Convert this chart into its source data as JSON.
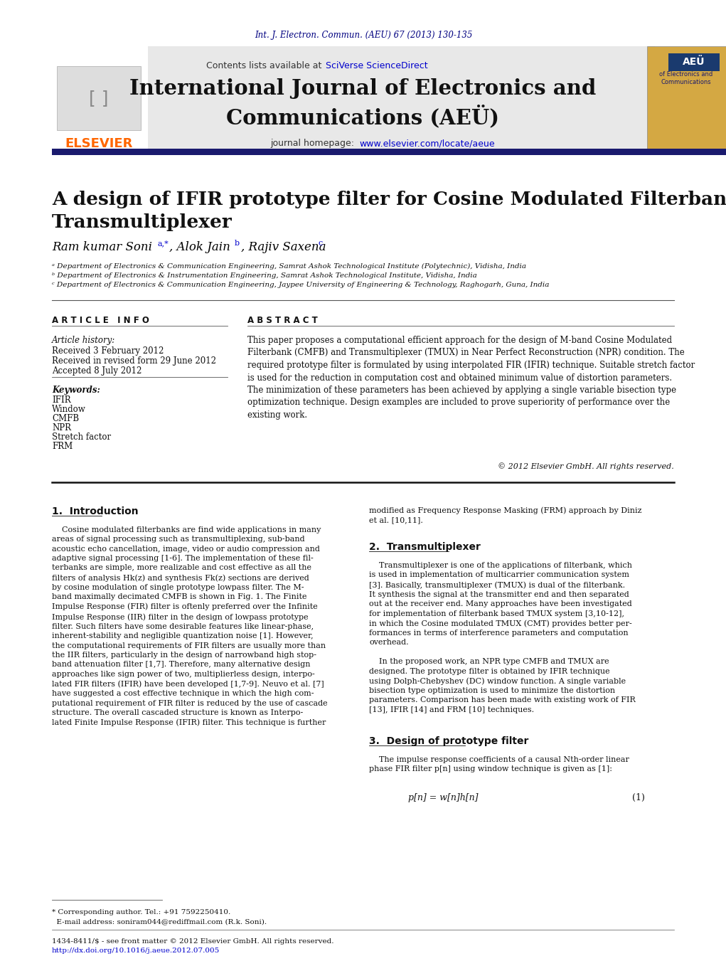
{
  "page_bg": "#ffffff",
  "header_journal_ref": "Int. J. Electron. Commun. (AEU) 67 (2013) 130-135",
  "header_journal_ref_color": "#000080",
  "journal_header_bg": "#e8e8e8",
  "journal_title": "International Journal of Electronics and\nCommunications (AEÜ)",
  "journal_homepage_link_color": "#0000cc",
  "elsevier_text": "ELSEVIER",
  "elsevier_color": "#ff6600",
  "divider_color": "#1a1a6e",
  "article_title": "A design of IFIR prototype filter for Cosine Modulated Filterbank and\nTransmultiplexer",
  "authors": "Ram kumar Soni",
  "authors_superscript": "a,*",
  "authors2": ", Alok Jain",
  "authors2_superscript": "b",
  "authors3": ", Rajiv Saxena",
  "authors3_superscript": "c",
  "affil_a": "ᵃ Department of Electronics & Communication Engineering, Samrat Ashok Technological Institute (Polytechnic), Vidisha, India",
  "affil_b": "ᵇ Department of Electronics & Instrumentation Engineering, Samrat Ashok Technological Institute, Vidisha, India",
  "affil_c": "ᶜ Department of Electronics & Communication Engineering, Jaypee University of Engineering & Technology, Raghogarh, Guna, India",
  "article_info_header": "A R T I C L E   I N F O",
  "abstract_header": "A B S T R A C T",
  "article_history_label": "Article history:",
  "received": "Received 3 February 2012",
  "received_revised": "Received in revised form 29 June 2012",
  "accepted": "Accepted 8 July 2012",
  "keywords_label": "Keywords:",
  "keywords": [
    "IFIR",
    "Window",
    "CMFB",
    "NPR",
    "Stretch factor",
    "FRM"
  ],
  "abstract_text": "This paper proposes a computational efficient approach for the design of M-band Cosine Modulated\nFilterbank (CMFB) and Transmultiplexer (TMUX) in Near Perfect Reconstruction (NPR) condition. The\nrequired prototype filter is formulated by using interpolated FIR (IFIR) technique. Suitable stretch factor\nis used for the reduction in computation cost and obtained minimum value of distortion parameters.\nThe minimization of these parameters has been achieved by applying a single variable bisection type\noptimization technique. Design examples are included to prove superiority of performance over the\nexisting work.",
  "copyright": "© 2012 Elsevier GmbH. All rights reserved.",
  "section1_title": "1.  Introduction",
  "section1_text": "    Cosine modulated filterbanks are find wide applications in many\nareas of signal processing such as transmultiplexing, sub-band\nacoustic echo cancellation, image, video or audio compression and\nadaptive signal processing [1-6]. The implementation of these fil-\nterbanks are simple, more realizable and cost effective as all the\nfilters of analysis Hk(z) and synthesis Fk(z) sections are derived\nby cosine modulation of single prototype lowpass filter. The M-\nband maximally decimated CMFB is shown in Fig. 1. The Finite\nImpulse Response (FIR) filter is oftenly preferred over the Infinite\nImpulse Response (IIR) filter in the design of lowpass prototype\nfilter. Such filters have some desirable features like linear-phase,\ninherent-stability and negligible quantization noise [1]. However,\nthe computational requirements of FIR filters are usually more than\nthe IIR filters, particularly in the design of narrowband high stop-\nband attenuation filter [1,7]. Therefore, many alternative design\napproaches like sign power of two, multiplierless design, interpo-\nlated FIR filters (IFIR) have been developed [1,7-9]. Neuvo et al. [7]\nhave suggested a cost effective technique in which the high com-\nputational requirement of FIR filter is reduced by the use of cascade\nstructure. The overall cascaded structure is known as Interpo-\nlated Finite Impulse Response (IFIR) filter. This technique is further",
  "section2_title_right": "modified as Frequency Response Masking (FRM) approach by Diniz\net al. [10,11].",
  "section2_header": "2.  Transmultiplexer",
  "section2_text": "    Transmultiplexer is one of the applications of filterbank, which\nis used in implementation of multicarrier communication system\n[3]. Basically, transmultiplexer (TMUX) is dual of the filterbank.\nIt synthesis the signal at the transmitter end and then separated\nout at the receiver end. Many approaches have been investigated\nfor implementation of filterbank based TMUX system [3,10-12],\nin which the Cosine modulated TMUX (CMT) provides better per-\nformances in terms of interference parameters and computation\noverhead.\n\n    In the proposed work, an NPR type CMFB and TMUX are\ndesigned. The prototype filter is obtained by IFIR technique\nusing Dolph-Chebyshev (DC) window function. A single variable\nbisection type optimization is used to minimize the distortion\nparameters. Comparison has been made with existing work of FIR\n[13], IFIR [14] and FRM [10] techniques.",
  "section3_header": "3.  Design of prototype filter",
  "section3_text": "    The impulse response coefficients of a causal Nth-order linear\nphase FIR filter p[n] using window technique is given as [1]:",
  "equation1": "p[n] = w[n]h[n]",
  "equation1_num": "(1)",
  "footnote1": "* Corresponding author. Tel.: +91 7592250410.",
  "footnote2": "  E-mail address: soniram044@rediffmail.com (R.k. Soni).",
  "footnote3": "1434-8411/$ - see front matter © 2012 Elsevier GmbH. All rights reserved.",
  "footnote4": "http://dx.doi.org/10.1016/j.aeue.2012.07.005",
  "contents_available": "Contents lists available at ",
  "sciverse": "SciVerse ScienceDirect",
  "sciverse_color": "#0000cc"
}
